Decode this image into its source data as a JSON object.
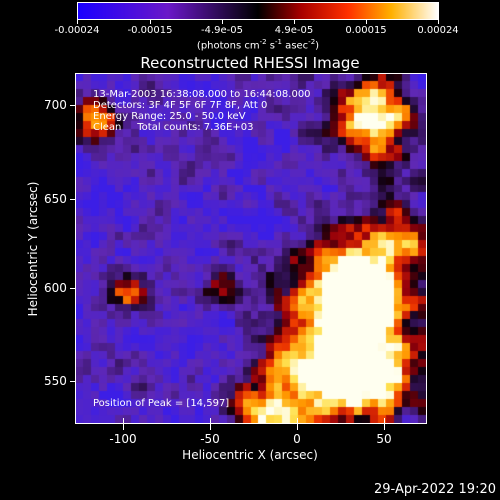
{
  "colorbar": {
    "ticks": [
      "-0.00024",
      "-0.00015",
      "-4.9e-05",
      "4.9e-05",
      "0.00015",
      "0.00024"
    ],
    "units": "(photons cm",
    "units_exp1": "-2",
    "units_mid": " s",
    "units_exp2": "-1",
    "units_mid2": " asec",
    "units_exp3": "-2",
    "units_end": ")"
  },
  "title": "Reconstructed RHESSI Image",
  "annotations": {
    "time_range": "13-Mar-2003 16:38:08.000 to 16:44:08.000",
    "detectors": "Detectors: 3F 4F 5F 6F 7F 8F, Att 0",
    "energy": "Energy Range: 25.0 - 50.0 keV",
    "clean": "Clean     Total counts: 7.36E+03",
    "peak": "Position of Peak = [14,597]"
  },
  "x_axis": {
    "label": "Heliocentric X (arcsec)",
    "ticks": [
      "-100",
      "-50",
      "0",
      "50"
    ]
  },
  "y_axis": {
    "label": "Heliocentric Y (arcsec)",
    "ticks": [
      "700",
      "650",
      "600",
      "550"
    ]
  },
  "datestamp": "29-Apr-2022 19:20"
}
